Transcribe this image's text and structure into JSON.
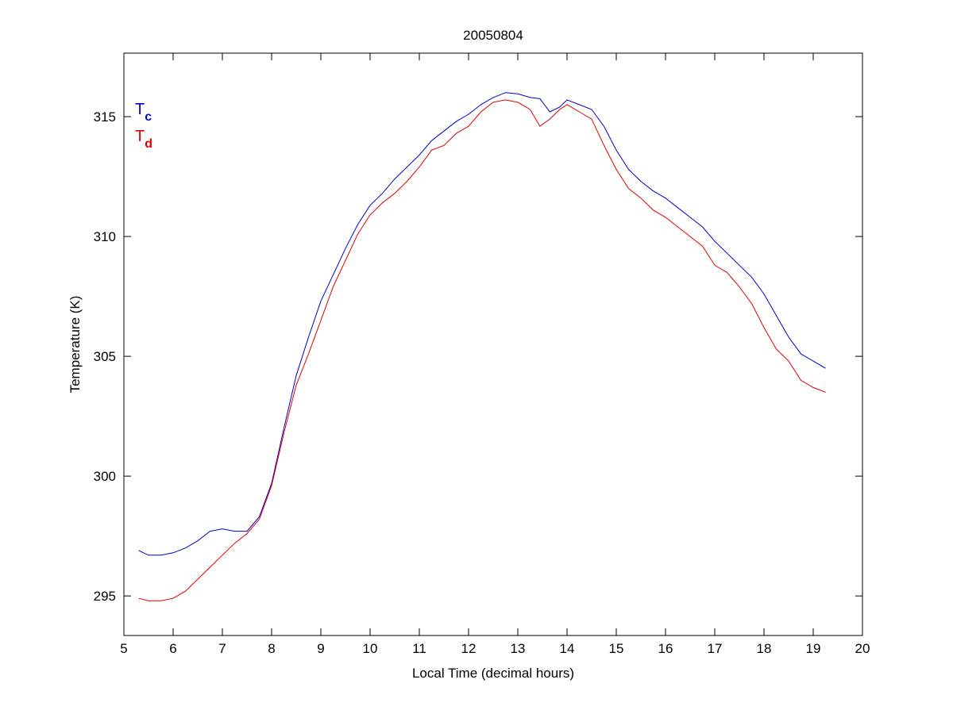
{
  "chart_data": {
    "type": "line",
    "title": "20050804",
    "xlabel": "Local Time (decimal hours)",
    "ylabel": "Temperature (K)",
    "xlim": [
      5,
      20
    ],
    "ylim": [
      293.35,
      317.65
    ],
    "xticks": [
      5,
      6,
      7,
      8,
      9,
      10,
      11,
      12,
      13,
      14,
      15,
      16,
      17,
      18,
      19,
      20
    ],
    "yticks": [
      295,
      300,
      305,
      310,
      315
    ],
    "grid": false,
    "legend": {
      "placement": "top-left",
      "entries": [
        {
          "main": "T",
          "sub": "c",
          "color": "#0000cc"
        },
        {
          "main": "T",
          "sub": "d",
          "color": "#dd0000"
        }
      ]
    },
    "x": [
      5.3,
      5.5,
      5.75,
      6.0,
      6.25,
      6.5,
      6.75,
      7.0,
      7.25,
      7.5,
      7.75,
      8.0,
      8.25,
      8.5,
      8.75,
      9.0,
      9.25,
      9.5,
      9.75,
      10.0,
      10.25,
      10.5,
      10.75,
      11.0,
      11.25,
      11.5,
      11.75,
      12.0,
      12.25,
      12.5,
      12.75,
      13.0,
      13.25,
      13.45,
      13.65,
      13.85,
      14.0,
      14.25,
      14.5,
      14.75,
      15.0,
      15.25,
      15.5,
      15.75,
      16.0,
      16.25,
      16.5,
      16.75,
      17.0,
      17.25,
      17.5,
      17.75,
      18.0,
      18.25,
      18.5,
      18.75,
      19.0,
      19.25
    ],
    "series": [
      {
        "name": "Tc",
        "color": "#0000cc",
        "values": [
          296.9,
          296.7,
          296.7,
          296.8,
          297.0,
          297.3,
          297.7,
          297.8,
          297.7,
          297.7,
          298.3,
          299.7,
          302.0,
          304.2,
          305.8,
          307.3,
          308.4,
          309.5,
          310.5,
          311.3,
          311.8,
          312.4,
          312.9,
          313.4,
          314.0,
          314.4,
          314.8,
          315.1,
          315.5,
          315.8,
          316.0,
          315.95,
          315.8,
          315.75,
          315.2,
          315.4,
          315.7,
          315.5,
          315.3,
          314.6,
          313.6,
          312.8,
          312.3,
          311.9,
          311.6,
          311.2,
          310.8,
          310.4,
          309.8,
          309.3,
          308.8,
          308.3,
          307.6,
          306.7,
          305.8,
          305.1,
          304.8,
          304.5
        ]
      },
      {
        "name": "Td",
        "color": "#dd0000",
        "values": [
          294.9,
          294.8,
          294.8,
          294.9,
          295.2,
          295.7,
          296.2,
          296.7,
          297.2,
          297.6,
          298.2,
          299.6,
          301.8,
          303.8,
          305.1,
          306.5,
          307.9,
          309.0,
          310.1,
          310.9,
          311.4,
          311.8,
          312.3,
          312.9,
          313.6,
          313.8,
          314.3,
          314.6,
          315.2,
          315.6,
          315.7,
          315.6,
          315.3,
          314.6,
          314.9,
          315.3,
          315.5,
          315.2,
          314.9,
          313.8,
          312.8,
          312.0,
          311.6,
          311.1,
          310.8,
          310.4,
          310.0,
          309.6,
          308.8,
          308.5,
          307.9,
          307.2,
          306.2,
          305.3,
          304.8,
          304.0,
          303.7,
          303.5
        ]
      }
    ]
  }
}
